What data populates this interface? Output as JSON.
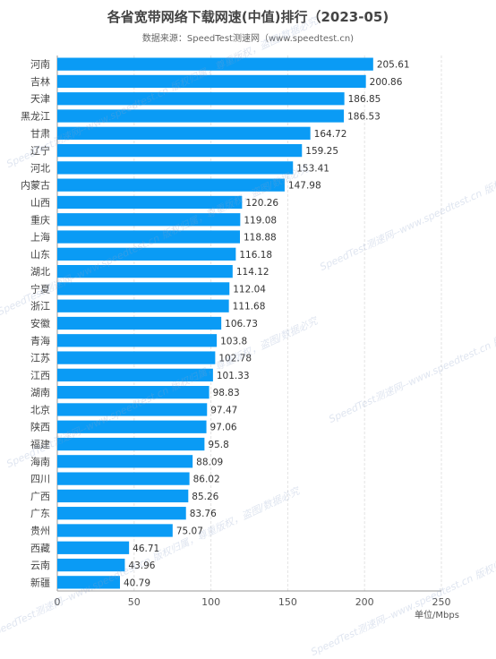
{
  "title": "各省宽带网络下载网速(中值)排行（2023-05)",
  "subtitle": "数据来源：SpeedTest测速网（www.speedtest.cn)",
  "watermark": "SpeedTest测速网--www.speedtest.cn 版权归属，尊重版权，盗图/数据必究",
  "bar_color": "#0a9bf5",
  "chart_data": {
    "type": "bar",
    "orientation": "horizontal",
    "categories": [
      "河南",
      "吉林",
      "天津",
      "黑龙江",
      "甘肃",
      "辽宁",
      "河北",
      "内蒙古",
      "山西",
      "重庆",
      "上海",
      "山东",
      "湖北",
      "宁夏",
      "浙江",
      "安徽",
      "青海",
      "江苏",
      "江西",
      "湖南",
      "北京",
      "陕西",
      "福建",
      "海南",
      "四川",
      "广西",
      "广东",
      "贵州",
      "西藏",
      "云南",
      "新疆"
    ],
    "values": [
      205.61,
      200.86,
      186.85,
      186.53,
      164.72,
      159.25,
      153.41,
      147.98,
      120.26,
      119.08,
      118.88,
      116.18,
      114.12,
      112.04,
      111.68,
      106.73,
      103.8,
      102.78,
      101.33,
      98.83,
      97.47,
      97.06,
      95.8,
      88.09,
      86.02,
      85.26,
      83.76,
      75.07,
      46.71,
      43.96,
      40.79
    ],
    "value_labels": [
      "205.61",
      "200.86",
      "186.85",
      "186.53",
      "164.72",
      "159.25",
      "153.41",
      "147.98",
      "120.26",
      "119.08",
      "118.88",
      "116.18",
      "114.12",
      "112.04",
      "111.68",
      "106.73",
      "103.8",
      "102.78",
      "101.33",
      "98.83",
      "97.47",
      "97.06",
      "95.8",
      "88.09",
      "86.02",
      "85.26",
      "83.76",
      "75.07",
      "46.71",
      "43.96",
      "40.79"
    ],
    "xlim": [
      0,
      250
    ],
    "xticks": [
      "0",
      "50",
      "100",
      "150",
      "200",
      "250"
    ],
    "xlabel": "单位/Mbps",
    "grid": true
  }
}
